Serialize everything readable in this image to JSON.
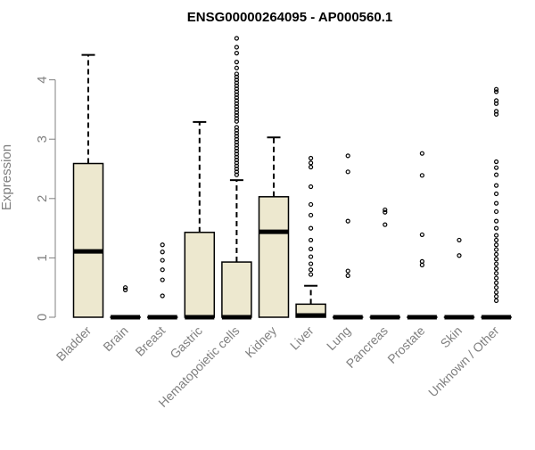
{
  "chart_data": {
    "type": "boxplot",
    "title": "ENSG00000264095 - AP000560.1",
    "xlabel": "",
    "ylabel": "Expression",
    "ylim": [
      0,
      4.7
    ],
    "yticks": [
      0,
      1,
      2,
      3,
      4
    ],
    "grid": false,
    "legend": "none",
    "colors": {
      "box_fill": "#EDE8CF",
      "box_stroke": "#000000",
      "axis": "#808080",
      "axis_label": "#808080",
      "title": "#000000"
    },
    "categories": [
      {
        "label": "Bladder",
        "q1": 0,
        "median": 1.11,
        "q3": 2.59,
        "whisker_low": 0,
        "whisker_high": 4.42,
        "outliers": []
      },
      {
        "label": "Brain",
        "q1": 0,
        "median": 0,
        "q3": 0,
        "whisker_low": 0,
        "whisker_high": 0,
        "outliers": [
          0.46,
          0.5
        ]
      },
      {
        "label": "Breast",
        "q1": 0,
        "median": 0,
        "q3": 0,
        "whisker_low": 0,
        "whisker_high": 0,
        "outliers": [
          0.36,
          0.63,
          0.8,
          0.96,
          1.1,
          1.22
        ]
      },
      {
        "label": "Gastric",
        "q1": 0,
        "median": 0,
        "q3": 1.43,
        "whisker_low": 0,
        "whisker_high": 3.29,
        "outliers": []
      },
      {
        "label": "Hematopoietic cells",
        "q1": 0,
        "median": 0,
        "q3": 0.93,
        "whisker_low": 0,
        "whisker_high": 2.31,
        "outliers": [
          2.4,
          2.45,
          2.5,
          2.55,
          2.6,
          2.65,
          2.7,
          2.75,
          2.8,
          2.85,
          2.9,
          2.95,
          3.0,
          3.05,
          3.1,
          3.15,
          3.2,
          3.3,
          3.35,
          3.4,
          3.45,
          3.5,
          3.55,
          3.6,
          3.65,
          3.7,
          3.75,
          3.8,
          3.85,
          3.9,
          3.95,
          4.0,
          4.05,
          4.1,
          4.2,
          4.3,
          4.45,
          4.55,
          4.7
        ]
      },
      {
        "label": "Kidney",
        "q1": 0,
        "median": 1.44,
        "q3": 2.03,
        "whisker_low": 0,
        "whisker_high": 3.03,
        "outliers": []
      },
      {
        "label": "Liver",
        "q1": 0,
        "median": 0.03,
        "q3": 0.22,
        "whisker_low": 0,
        "whisker_high": 0.53,
        "outliers": [
          0.72,
          0.8,
          0.9,
          1.02,
          1.15,
          1.3,
          1.5,
          1.72,
          1.9,
          2.2,
          2.53,
          2.6,
          2.68
        ]
      },
      {
        "label": "Lung",
        "q1": 0,
        "median": 0,
        "q3": 0,
        "whisker_low": 0,
        "whisker_high": 0,
        "outliers": [
          0.7,
          0.78,
          1.62,
          2.45,
          2.72
        ]
      },
      {
        "label": "Pancreas",
        "q1": 0,
        "median": 0,
        "q3": 0,
        "whisker_low": 0,
        "whisker_high": 0,
        "outliers": [
          1.56,
          1.77,
          1.81
        ]
      },
      {
        "label": "Prostate",
        "q1": 0,
        "median": 0,
        "q3": 0,
        "whisker_low": 0,
        "whisker_high": 0,
        "outliers": [
          0.88,
          0.94,
          1.39,
          2.39,
          2.76
        ]
      },
      {
        "label": "Skin",
        "q1": 0,
        "median": 0,
        "q3": 0,
        "whisker_low": 0,
        "whisker_high": 0,
        "outliers": [
          1.04,
          1.3
        ]
      },
      {
        "label": "Unknown / Other",
        "q1": 0,
        "median": 0,
        "q3": 0,
        "whisker_low": 0,
        "whisker_high": 0,
        "outliers": [
          0.28,
          0.35,
          0.42,
          0.5,
          0.58,
          0.66,
          0.74,
          0.82,
          0.9,
          0.98,
          1.06,
          1.14,
          1.22,
          1.3,
          1.38,
          1.5,
          1.62,
          1.78,
          1.92,
          2.08,
          2.22,
          2.4,
          2.52,
          2.62,
          3.42,
          3.47,
          3.6,
          3.65,
          3.8,
          3.84
        ]
      }
    ]
  }
}
